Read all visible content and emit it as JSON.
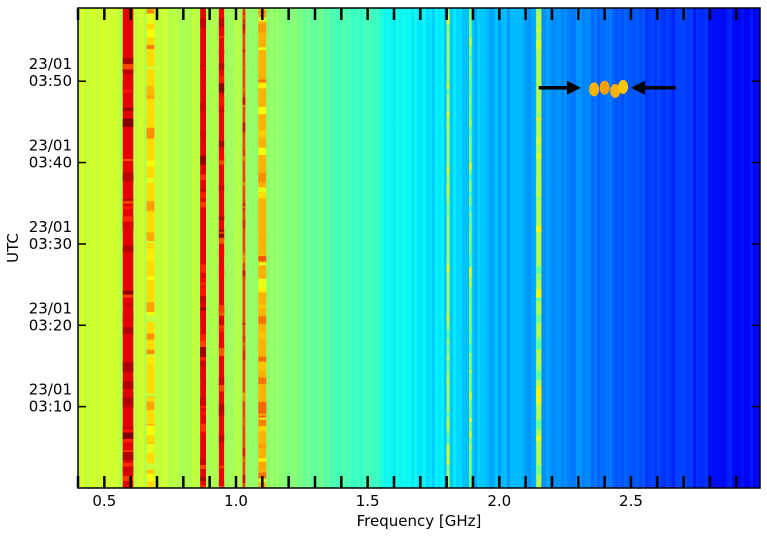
{
  "chart_data": {
    "type": "heatmap",
    "title": "",
    "xlabel": "Frequency [GHz]",
    "ylabel": "UTC",
    "xlim": [
      0.4,
      2.99
    ],
    "x_ticks": [
      {
        "value": 0.5,
        "label": "0.5"
      },
      {
        "value": 1.0,
        "label": "1.0"
      },
      {
        "value": 1.5,
        "label": "1.5"
      },
      {
        "value": 2.0,
        "label": "2.0"
      },
      {
        "value": 2.5,
        "label": "2.5"
      }
    ],
    "ylim_minutes_from_0300": [
      0,
      59
    ],
    "y_ticks": [
      {
        "minutes": 10,
        "date": "23/01",
        "time": "03:10"
      },
      {
        "minutes": 20,
        "date": "23/01",
        "time": "03:20"
      },
      {
        "minutes": 30,
        "date": "23/01",
        "time": "03:30"
      },
      {
        "minutes": 40,
        "date": "23/01",
        "time": "03:40"
      },
      {
        "minutes": 50,
        "date": "23/01",
        "time": "03:50"
      }
    ],
    "colormap": "jet",
    "colormap_stops": [
      "#00007f",
      "#0000ff",
      "#007fff",
      "#00ffff",
      "#7fff7f",
      "#ffff00",
      "#ff7f00",
      "#ff0000",
      "#7f0000"
    ],
    "background_profile": [
      {
        "freq": 0.4,
        "level": 0.58
      },
      {
        "freq": 1.0,
        "level": 0.54
      },
      {
        "freq": 1.2,
        "level": 0.5
      },
      {
        "freq": 1.45,
        "level": 0.44
      },
      {
        "freq": 1.7,
        "level": 0.36
      },
      {
        "freq": 2.0,
        "level": 0.3
      },
      {
        "freq": 2.3,
        "level": 0.25
      },
      {
        "freq": 2.6,
        "level": 0.19
      },
      {
        "freq": 2.99,
        "level": 0.12
      }
    ],
    "bands": [
      {
        "freq": 0.59,
        "width": 0.04,
        "level": 0.9
      },
      {
        "freq": 0.675,
        "width": 0.03,
        "level": 0.66
      },
      {
        "freq": 0.875,
        "width": 0.022,
        "level": 0.9
      },
      {
        "freq": 0.945,
        "width": 0.02,
        "level": 0.89
      },
      {
        "freq": 1.03,
        "width": 0.01,
        "level": 0.82
      },
      {
        "freq": 1.1,
        "width": 0.03,
        "level": 0.7
      },
      {
        "freq": 1.805,
        "width": 0.01,
        "level": 0.55
      },
      {
        "freq": 1.89,
        "width": 0.01,
        "level": 0.5
      },
      {
        "freq": 2.15,
        "width": 0.02,
        "level": 0.55
      }
    ],
    "bursts": [
      {
        "freq": 2.36,
        "minutes": 49.0,
        "level": 0.7
      },
      {
        "freq": 2.4,
        "minutes": 49.2,
        "level": 0.72
      },
      {
        "freq": 2.44,
        "minutes": 48.8,
        "level": 0.7
      },
      {
        "freq": 2.47,
        "minutes": 49.3,
        "level": 0.68
      }
    ],
    "annotations": [
      {
        "type": "arrow",
        "from_freq": 2.15,
        "to_freq": 2.31,
        "minutes": 49.2
      },
      {
        "type": "arrow",
        "from_freq": 2.67,
        "to_freq": 2.5,
        "minutes": 49.2
      }
    ]
  }
}
